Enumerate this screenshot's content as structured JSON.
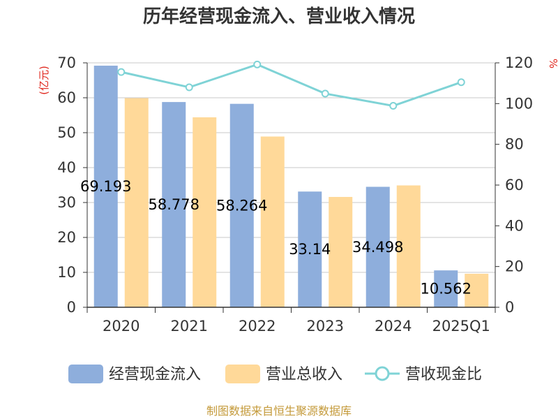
{
  "chart_data": {
    "type": "bar",
    "title": "历年经营现金流入、营业收入情况",
    "categories": [
      "2020",
      "2021",
      "2022",
      "2023",
      "2024",
      "2025Q1"
    ],
    "y_left_label": "(亿元)",
    "y_right_label": "%",
    "y_left_range": [
      0,
      70
    ],
    "y_left_ticks": [
      0,
      10,
      20,
      30,
      40,
      50,
      60,
      70
    ],
    "y_right_range": [
      0,
      120
    ],
    "y_right_ticks": [
      0,
      20,
      40,
      60,
      80,
      100,
      120
    ],
    "grid": true,
    "legend_position": "bottom",
    "series": [
      {
        "name": "经营现金流入",
        "type": "bar",
        "axis": "left",
        "color": "#8eaedc",
        "values": [
          69.193,
          58.778,
          58.264,
          33.14,
          34.498,
          10.562
        ],
        "data_labels": [
          "69.193",
          "58.778",
          "58.264",
          "33.14",
          "34.498",
          "10.562"
        ]
      },
      {
        "name": "营业总收入",
        "type": "bar",
        "axis": "left",
        "color": "#ffd999",
        "values": [
          59.9,
          54.4,
          48.9,
          31.6,
          34.9,
          9.6
        ]
      },
      {
        "name": "营收现金比",
        "type": "line",
        "axis": "right",
        "color": "#7fd3d6",
        "values": [
          115.5,
          108.0,
          119.2,
          104.9,
          98.9,
          110.5
        ]
      }
    ],
    "source_note": "制图数据来自恒生聚源数据库"
  }
}
